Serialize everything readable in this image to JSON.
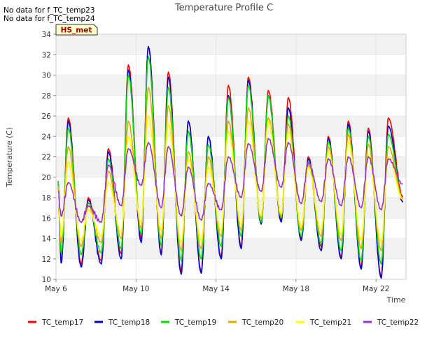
{
  "notes": [
    "No data for f_TC_temp23",
    "No data for f_TC_temp24"
  ],
  "site_badge": "HS_met",
  "chart_data": {
    "type": "line",
    "title": "Temperature Profile C",
    "xlabel": "Time",
    "ylabel": "Temperature (C)",
    "x_unit": "days (May)",
    "xlim": [
      6.0,
      23.5
    ],
    "ylim": [
      10,
      34
    ],
    "yticks": [
      10,
      12,
      14,
      16,
      18,
      20,
      22,
      24,
      26,
      28,
      30,
      32,
      34
    ],
    "xticks": [
      {
        "x": 6,
        "label": "May 6"
      },
      {
        "x": 10,
        "label": "May 10"
      },
      {
        "x": 14,
        "label": "May 14"
      },
      {
        "x": 18,
        "label": "May 18"
      },
      {
        "x": 22,
        "label": "May 22"
      }
    ],
    "grid": true,
    "legend_position": "bottom",
    "day_centers": [
      6.5,
      7.5,
      8.5,
      9.5,
      10.5,
      11.5,
      12.5,
      13.5,
      14.5,
      15.5,
      16.5,
      17.5,
      18.5,
      19.5,
      20.5,
      21.5,
      22.5
    ],
    "series": [
      {
        "name": "TC_temp17",
        "color": "#ff0000",
        "lows": [
          11.8,
          11.5,
          11.8,
          12.5,
          14.0,
          12.6,
          10.8,
          10.8,
          12.2,
          13.2,
          15.5,
          15.8,
          14.0,
          13.2,
          12.2,
          11.2,
          10.3
        ],
        "highs": [
          25.8,
          18.0,
          22.8,
          31.0,
          32.8,
          30.3,
          25.5,
          24.0,
          29.0,
          29.8,
          28.5,
          27.8,
          22.0,
          24.0,
          25.5,
          24.8,
          25.8
        ]
      },
      {
        "name": "TC_temp18",
        "color": "#0000cc",
        "lows": [
          11.6,
          11.2,
          11.5,
          12.0,
          13.6,
          12.4,
          10.5,
          10.6,
          12.0,
          13.0,
          15.4,
          15.6,
          13.8,
          12.8,
          12.0,
          11.0,
          10.1
        ],
        "highs": [
          25.5,
          17.8,
          22.5,
          30.5,
          32.8,
          29.8,
          25.5,
          24.0,
          28.0,
          29.5,
          28.0,
          26.8,
          21.8,
          23.8,
          25.2,
          24.5,
          25.0
        ]
      },
      {
        "name": "TC_temp19",
        "color": "#00dd00",
        "lows": [
          12.6,
          12.4,
          12.6,
          13.0,
          14.4,
          13.3,
          11.8,
          12.0,
          13.2,
          14.2,
          15.6,
          16.0,
          14.2,
          13.5,
          12.8,
          11.8,
          11.5
        ],
        "highs": [
          24.8,
          17.5,
          21.8,
          30.0,
          31.8,
          28.8,
          24.5,
          23.2,
          27.8,
          29.0,
          28.0,
          26.0,
          21.5,
          23.5,
          24.8,
          24.0,
          24.2
        ]
      },
      {
        "name": "TC_temp20",
        "color": "#e8a800",
        "lows": [
          13.6,
          13.2,
          13.6,
          14.0,
          15.0,
          14.0,
          12.8,
          13.0,
          14.2,
          14.8,
          16.0,
          16.2,
          14.8,
          14.2,
          13.8,
          13.0,
          12.8
        ],
        "highs": [
          23.0,
          17.2,
          20.6,
          25.5,
          28.8,
          27.0,
          22.5,
          22.0,
          25.5,
          26.8,
          25.8,
          25.2,
          21.2,
          23.0,
          24.2,
          23.2,
          23.0
        ]
      },
      {
        "name": "TC_temp21",
        "color": "#ffff00",
        "lows": [
          14.2,
          13.8,
          14.2,
          14.6,
          15.6,
          14.8,
          13.6,
          13.8,
          14.8,
          15.4,
          16.2,
          16.4,
          15.2,
          14.8,
          14.4,
          13.8,
          13.6
        ],
        "highs": [
          21.5,
          16.8,
          19.5,
          24.0,
          26.0,
          25.2,
          21.8,
          21.0,
          24.5,
          25.5,
          25.5,
          24.5,
          21.0,
          22.5,
          23.5,
          22.2,
          22.0
        ]
      },
      {
        "name": "TC_temp22",
        "color": "#9933cc",
        "lows": [
          16.2,
          15.6,
          15.6,
          17.2,
          19.2,
          17.0,
          16.2,
          15.8,
          16.8,
          18.0,
          18.6,
          19.0,
          17.4,
          17.6,
          17.2,
          17.0,
          16.8
        ],
        "highs": [
          19.5,
          17.2,
          21.2,
          22.8,
          23.4,
          23.0,
          21.0,
          19.4,
          22.0,
          23.3,
          23.8,
          23.4,
          21.4,
          21.8,
          22.0,
          22.0,
          21.8
        ]
      }
    ]
  }
}
